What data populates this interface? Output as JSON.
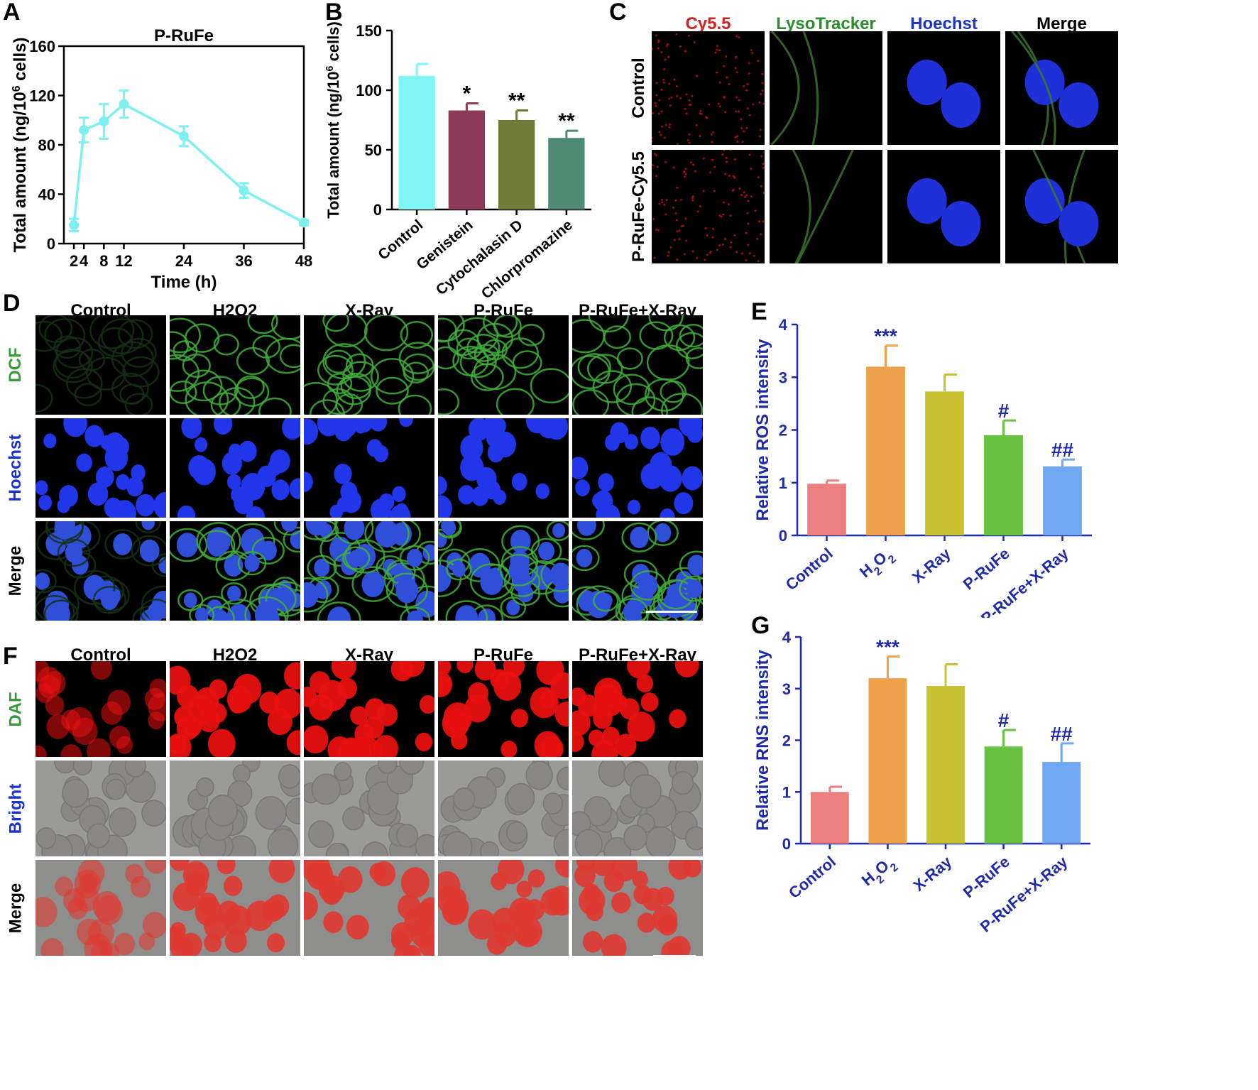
{
  "panels": {
    "A": "A",
    "B": "B",
    "C": "C",
    "D": "D",
    "E": "E",
    "F": "F",
    "G": "G"
  },
  "panel_c": {
    "columns": [
      "Cy5.5",
      "LysoTracker",
      "Hoechst",
      "Merge"
    ],
    "column_colors": [
      "#d62020",
      "#2e8b2e",
      "#1a33cc",
      "#000000"
    ],
    "rows": [
      "Control",
      "P-RuFe-Cy5.5"
    ]
  },
  "panel_d": {
    "columns": [
      "Control",
      "H2O2",
      "X-Ray",
      "P-RuFe",
      "P-RuFe+X-Ray"
    ],
    "rows": [
      "DCF",
      "Hoechst",
      "Merge"
    ],
    "row_colors": [
      "#3a9a3a",
      "#1a33cc",
      "#000000"
    ]
  },
  "panel_f": {
    "columns": [
      "Control",
      "H2O2",
      "X-Ray",
      "P-RuFe",
      "P-RuFe+X-Ray"
    ],
    "rows": [
      "DAF",
      "Bright",
      "Merge"
    ],
    "row_colors": [
      "#3a9a3a",
      "#1a33cc",
      "#000000"
    ]
  },
  "chart_data": [
    {
      "id": "A",
      "type": "line",
      "title": "P-RuFe",
      "xlabel": "Time (h)",
      "ylabel": "Total amount (ng/10⁶ cells)",
      "x": [
        2,
        4,
        8,
        12,
        24,
        36,
        48
      ],
      "xticks": [
        "2",
        "4",
        "8",
        "12",
        "24",
        "36",
        "48"
      ],
      "y": [
        15,
        92,
        99,
        113,
        87,
        43,
        17
      ],
      "err": [
        5,
        10,
        14,
        11,
        8,
        6,
        2
      ],
      "xlim": [
        0,
        48
      ],
      "ylim": [
        0,
        160
      ],
      "yticks": [
        "0",
        "40",
        "80",
        "120",
        "160"
      ],
      "color": "#7ff0f0"
    },
    {
      "id": "B",
      "type": "bar",
      "ylabel": "Total amount (ng/10⁶ cells)",
      "categories": [
        "Control",
        "Genistein",
        "Cytochalasin D",
        "Chlorpromazine"
      ],
      "values": [
        112,
        83,
        75,
        60
      ],
      "err": [
        10,
        6,
        8,
        6
      ],
      "sig": [
        "",
        "*",
        "**",
        "**"
      ],
      "ylim": [
        0,
        150
      ],
      "yticks": [
        "0",
        "50",
        "100",
        "150"
      ],
      "colors": [
        "#7ff5f5",
        "#8c3a58",
        "#6e7a35",
        "#4e8a74"
      ]
    },
    {
      "id": "E",
      "type": "bar",
      "ylabel": "Relative ROS intensity",
      "categories": [
        "Control",
        "H2O2",
        "X-Ray",
        "P-RuFe",
        "P-RuFe+X-Ray"
      ],
      "values": [
        0.98,
        3.2,
        2.73,
        1.9,
        1.31
      ],
      "err": [
        0.06,
        0.4,
        0.32,
        0.28,
        0.13
      ],
      "sig": [
        "",
        "***",
        "",
        "#",
        "##"
      ],
      "ylim": [
        0,
        4
      ],
      "yticks": [
        "0",
        "1",
        "2",
        "3",
        "4"
      ],
      "colors": [
        "#ec7f80",
        "#eca14a",
        "#c8c232",
        "#66c240",
        "#6ea8f2"
      ]
    },
    {
      "id": "G",
      "type": "bar",
      "ylabel": "Relative RNS intensity",
      "categories": [
        "Control",
        "H2O2",
        "X-Ray",
        "P-RuFe",
        "P-RuFe+X-Ray"
      ],
      "values": [
        1.0,
        3.2,
        3.05,
        1.88,
        1.58
      ],
      "err": [
        0.1,
        0.42,
        0.42,
        0.32,
        0.36
      ],
      "sig": [
        "",
        "***",
        "",
        "#",
        "##"
      ],
      "ylim": [
        0,
        4
      ],
      "yticks": [
        "0",
        "1",
        "2",
        "3",
        "4"
      ],
      "colors": [
        "#ec7f80",
        "#eca14a",
        "#c8c232",
        "#66c240",
        "#6ea8f2"
      ]
    }
  ]
}
